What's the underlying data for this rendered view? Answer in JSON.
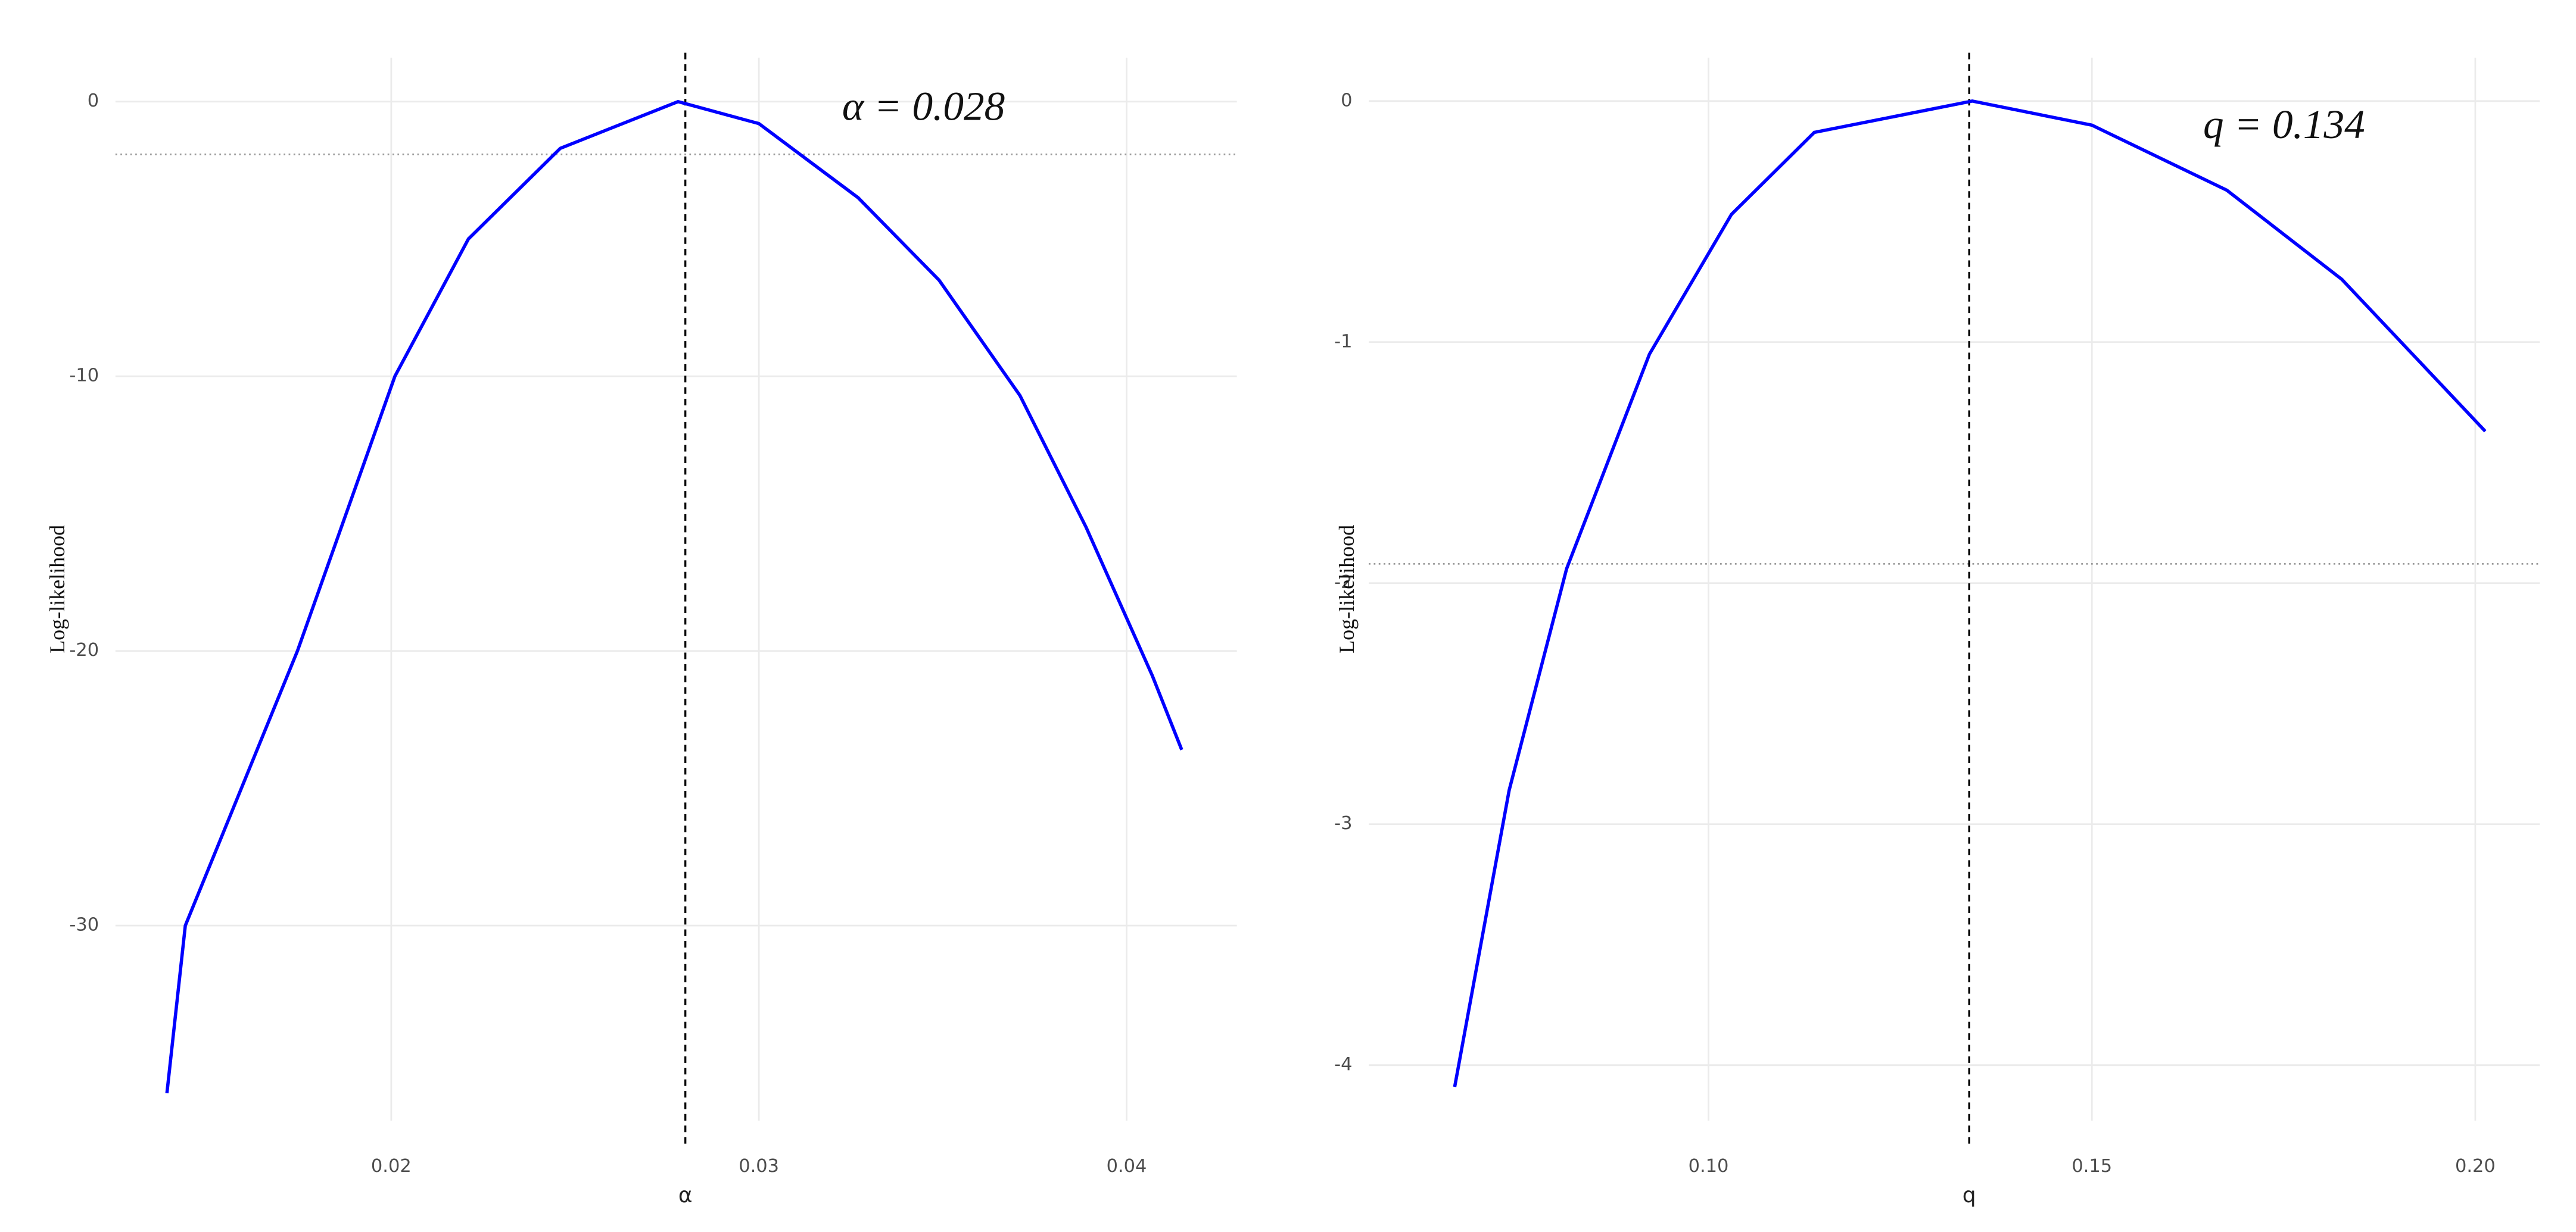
{
  "chart_data": [
    {
      "type": "line",
      "x_label": "α",
      "y_label": "Log-likelihood",
      "annotation": "α = 0.028",
      "x": [
        0.0139,
        0.0144,
        0.01745,
        0.0201,
        0.0221,
        0.0246,
        0.0278,
        0.03,
        0.0327,
        0.0349,
        0.0371,
        0.0389,
        0.0407,
        0.0415
      ],
      "values": [
        -36.1,
        -30,
        -20,
        -10,
        -5,
        -1.7,
        0,
        -0.8,
        -3.5,
        -6.5,
        -10.7,
        -15.5,
        -20.9,
        -23.6
      ],
      "color": "#0000ff",
      "vline": 0.028,
      "hline": -1.92,
      "xlim": [
        0.0125,
        0.043
      ],
      "ylim": [
        -37.1,
        1.6
      ],
      "xticks": [
        0.02,
        0.03,
        0.04
      ],
      "yticks": [
        -30,
        -20,
        -10,
        0
      ],
      "grid": true
    },
    {
      "type": "line",
      "x_label": "q",
      "y_label": "Log-likelihood",
      "annotation": "q = 0.134",
      "x": [
        0.0669,
        0.074,
        0.0815,
        0.0923,
        0.103,
        0.1138,
        0.1344,
        0.15,
        0.1676,
        0.1826,
        0.2013
      ],
      "values": [
        -4.09,
        -2.86,
        -1.94,
        -1.05,
        -0.47,
        -0.13,
        0,
        -0.1,
        -0.37,
        -0.74,
        -1.37
      ],
      "color": "#0000ff",
      "vline": 0.134,
      "hline": -1.92,
      "xlim": [
        0.0557,
        0.2084
      ],
      "ylim": [
        -4.23,
        0.18
      ],
      "xticks": [
        {
          "value": 0.1,
          "label": "0.10"
        },
        0.15,
        {
          "value": 0.2,
          "label": "0.20"
        }
      ],
      "yticks": [
        -4,
        -3,
        -2,
        -1,
        0
      ],
      "grid": true
    }
  ]
}
